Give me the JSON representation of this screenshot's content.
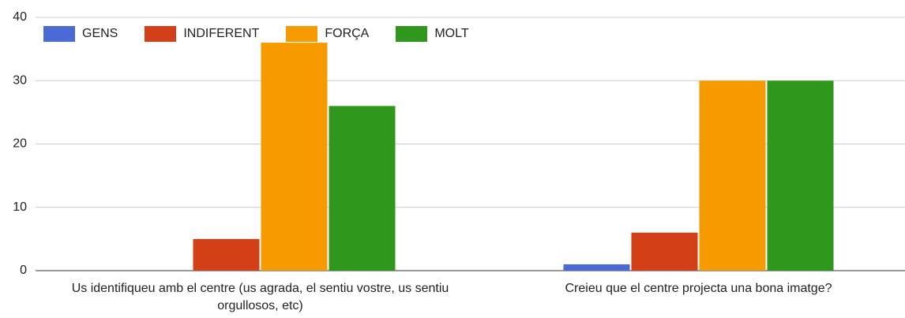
{
  "chart_data": {
    "type": "bar",
    "categories": [
      "Us identifiqueu amb el centre (us agrada, el sentiu vostre, us sentiu orgullosos, etc)",
      "Creieu que el centre projecta una bona imatge?"
    ],
    "series": [
      {
        "name": "GENS",
        "color": "#4a6bd6",
        "values": [
          0,
          1
        ]
      },
      {
        "name": "INDIFERENT",
        "color": "#d33f17",
        "values": [
          5,
          6
        ]
      },
      {
        "name": "FORÇA",
        "color": "#f59b00",
        "values": [
          36,
          30
        ]
      },
      {
        "name": "MOLT",
        "color": "#2f981c",
        "values": [
          26,
          30
        ]
      }
    ],
    "ylim": [
      0,
      40
    ],
    "yticks": [
      0,
      10,
      20,
      30,
      40
    ],
    "grid": true,
    "legend": "top"
  }
}
